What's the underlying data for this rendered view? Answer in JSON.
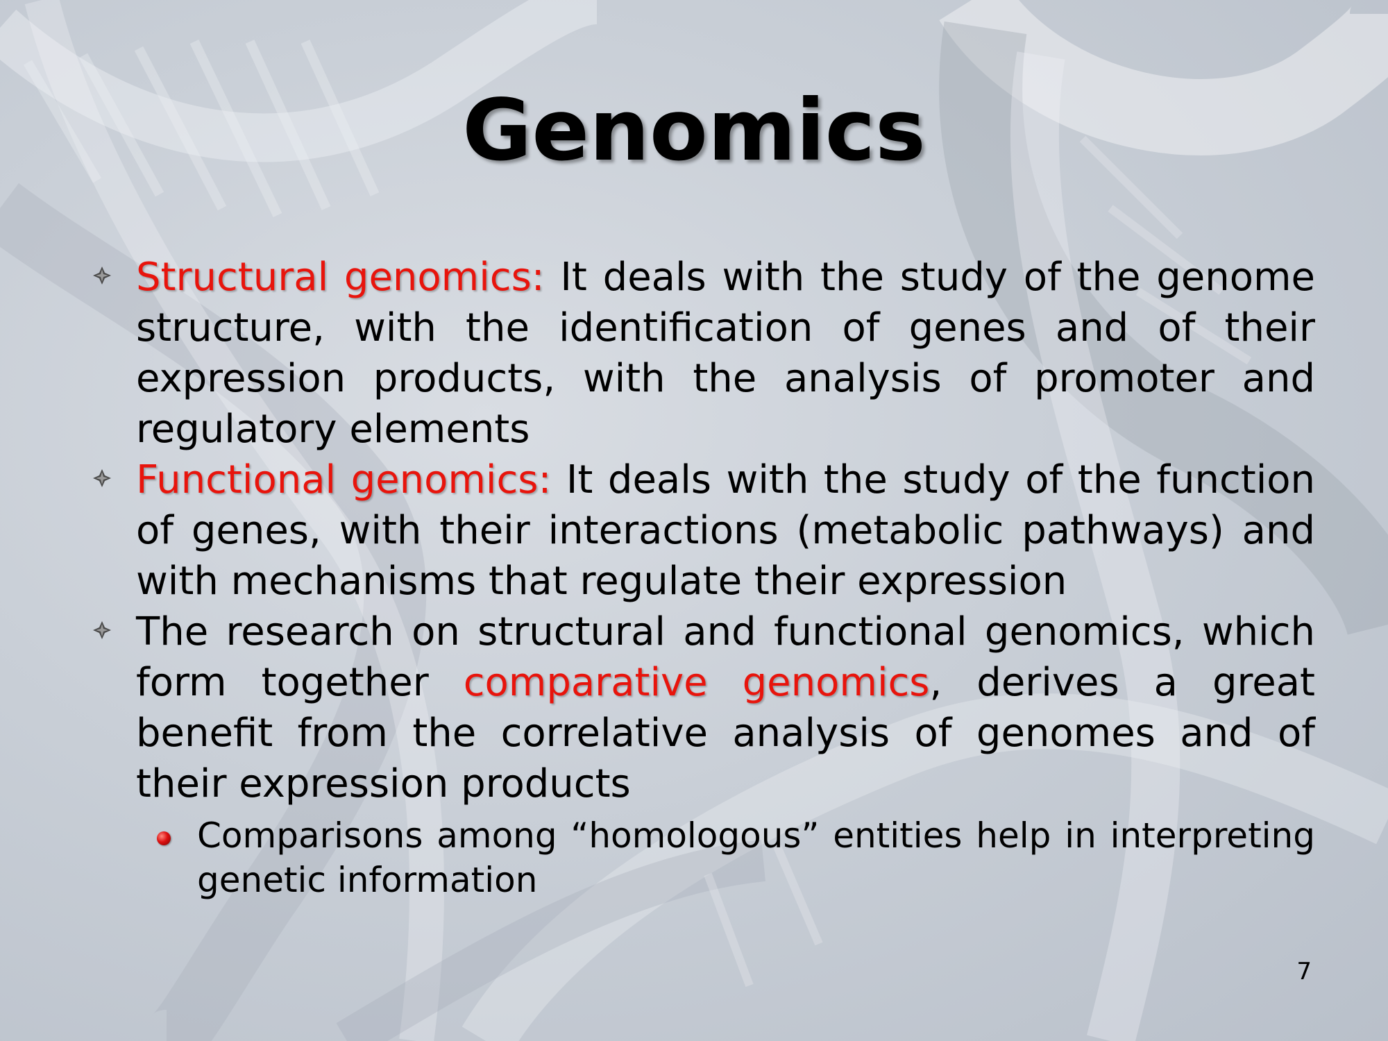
{
  "slide": {
    "title": "Genomics",
    "page_number": "7"
  },
  "bullets": [
    {
      "term": "Structural genomics:",
      "text": " It deals with the study of the genome structure, with the identification of genes and of their expression products, with the analysis of promoter and regulatory elements"
    },
    {
      "term": "Functional genomics:",
      "text": " It deals with the study of the function of genes, with their interactions (metabolic pathways) and with mechanisms that regulate their expression"
    },
    {
      "text_before": "The research on structural and functional genomics, which form together ",
      "highlight": "comparative genomics",
      "text_after": ", derives a great benefit from the correlative analysis of genomes and of their expression products",
      "sub_bullets": [
        {
          "text": "Comparisons among “homologous” entities help in interpreting genetic information"
        }
      ]
    }
  ],
  "colors": {
    "highlight": "#e8140c",
    "background": "#c9cfd7"
  },
  "icons": {
    "bullet": "diamond-star-icon",
    "sub_bullet": "red-ball-icon"
  }
}
